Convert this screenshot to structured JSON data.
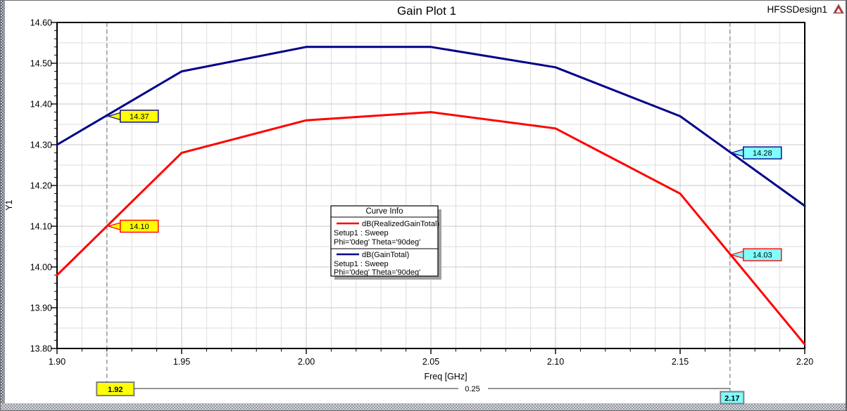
{
  "window": {
    "title": "Gain Plot 1",
    "design_label": "HFSSDesign1",
    "logo_icon": "ansys-triangle-logo"
  },
  "axes": {
    "x": {
      "label": "Freq [GHz]",
      "ticks": [
        {
          "v": 1.9,
          "label": "1.90"
        },
        {
          "v": 1.95,
          "label": "1.95"
        },
        {
          "v": 2.0,
          "label": "2.00"
        },
        {
          "v": 2.05,
          "label": "2.05"
        },
        {
          "v": 2.1,
          "label": "2.10"
        },
        {
          "v": 2.15,
          "label": "2.15"
        },
        {
          "v": 2.2,
          "label": "2.20"
        }
      ]
    },
    "y": {
      "label": "Y1",
      "ticks": [
        {
          "v": 14.6,
          "label": "14.60"
        },
        {
          "v": 14.5,
          "label": "14.50"
        },
        {
          "v": 14.4,
          "label": "14.40"
        },
        {
          "v": 14.3,
          "label": "14.30"
        },
        {
          "v": 14.2,
          "label": "14.20"
        },
        {
          "v": 14.1,
          "label": "14.10"
        },
        {
          "v": 14.0,
          "label": "14.00"
        },
        {
          "v": 13.9,
          "label": "13.90"
        },
        {
          "v": 13.8,
          "label": "13.80"
        }
      ]
    }
  },
  "legend": {
    "title": "Curve Info",
    "entries": [
      {
        "name": "dB(RealizedGainTotal)",
        "line1": "Setup1 : Sweep",
        "line2": "Phi='0deg' Theta='90deg'",
        "color": "#ff0000"
      },
      {
        "name": "dB(GainTotal)",
        "line1": "Setup1 : Sweep",
        "line2": "Phi='0deg' Theta='90deg'",
        "color": "#00008b"
      }
    ]
  },
  "markers": [
    {
      "x": 1.92,
      "x_label": "1.92",
      "box_fill": "#ffff00",
      "points": [
        {
          "label": "14.37",
          "value": 14.37,
          "series": 1
        },
        {
          "label": "14.10",
          "value": 14.1,
          "series": 0
        }
      ]
    },
    {
      "x": 2.17,
      "x_label": "2.17",
      "box_fill": "#80ffff",
      "points": [
        {
          "label": "14.28",
          "value": 14.28,
          "series": 1
        },
        {
          "label": "14.03",
          "value": 14.03,
          "series": 0
        }
      ]
    }
  ],
  "ruler": {
    "delta_label": "0.25"
  },
  "colors": {
    "grid_minor": "#dedede",
    "grid_major": "#c8c8c8",
    "dashed_marker_line": "#8a8a8a",
    "marker_box_border": "#7f7f7f",
    "yellow_marker": "#ffff00",
    "cyan_marker": "#80ffff"
  },
  "chart_data": {
    "type": "line",
    "title": "Gain Plot 1",
    "xlabel": "Freq [GHz]",
    "ylabel": "Y1",
    "x": [
      1.9,
      1.95,
      2.0,
      2.05,
      2.1,
      2.15,
      2.2
    ],
    "series": [
      {
        "name": "dB(RealizedGainTotal)",
        "color": "#ff0000",
        "values": [
          13.98,
          14.28,
          14.36,
          14.38,
          14.34,
          14.18,
          13.81
        ]
      },
      {
        "name": "dB(GainTotal)",
        "color": "#00008b",
        "values": [
          14.3,
          14.48,
          14.54,
          14.54,
          14.49,
          14.37,
          14.15
        ]
      }
    ],
    "xlim": [
      1.9,
      2.2
    ],
    "ylim": [
      13.8,
      14.6
    ],
    "grid": true,
    "legend_position": "center",
    "annotations": [
      {
        "type": "vline",
        "x": 1.92,
        "labels": [
          14.37,
          14.1
        ]
      },
      {
        "type": "vline",
        "x": 2.17,
        "labels": [
          14.28,
          14.03
        ]
      },
      {
        "type": "distance",
        "from": 1.92,
        "to": 2.17,
        "label": "0.25"
      }
    ]
  }
}
